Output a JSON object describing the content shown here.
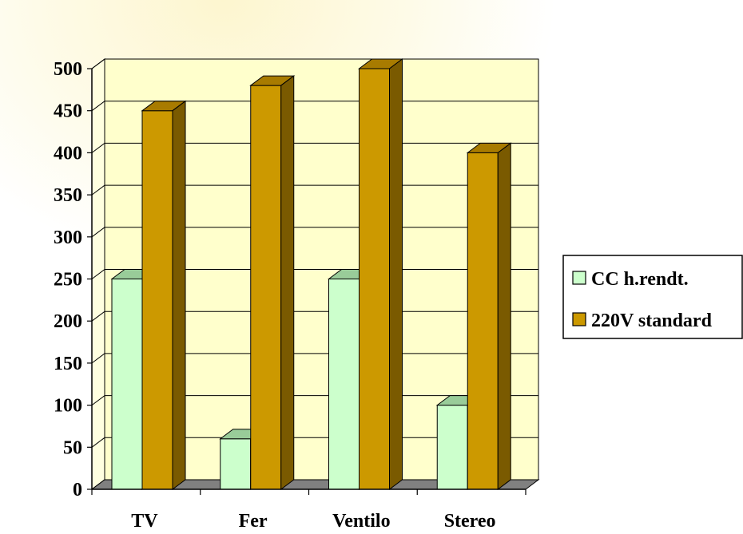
{
  "colors": {
    "series_1_front": "#ccffcc",
    "series_1_top": "#99cc99",
    "series_1_side": "#99cc99",
    "series_2_front": "#cc9900",
    "series_2_top": "#a87b00",
    "series_2_side": "#7a5a00",
    "floor": "#808080",
    "wall": "#ffffcc"
  },
  "chart_data": {
    "type": "bar",
    "categories": [
      "TV",
      "Fer",
      "Ventilo",
      "Stereo"
    ],
    "series": [
      {
        "name": "CC h.rendt.",
        "values": [
          250,
          60,
          250,
          100
        ]
      },
      {
        "name": "220V standard",
        "values": [
          450,
          480,
          500,
          400
        ]
      }
    ],
    "ylim": [
      0,
      500
    ],
    "yticks": [
      "0",
      "50",
      "100",
      "150",
      "200",
      "250",
      "300",
      "350",
      "400",
      "450",
      "500"
    ],
    "grid": true,
    "legend_position": "right"
  }
}
